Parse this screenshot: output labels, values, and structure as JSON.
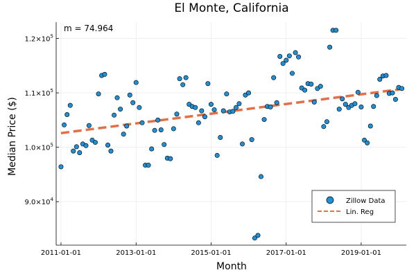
{
  "chart_data": {
    "type": "scatter",
    "title": "El Monte, California",
    "xlabel": "Month",
    "ylabel": "Median Price ($)",
    "annotation": "m = 74.964",
    "colors": {
      "points": "#1f8fd6",
      "line": "#e26f46"
    },
    "xlim": [
      "2010-11-15",
      "2020-03-15"
    ],
    "ylim": [
      82000,
      123000
    ],
    "grid": true,
    "legend_position": "bottom-right",
    "x_ticks": [
      {
        "date": "2011-01-01",
        "label": "2011-01-01"
      },
      {
        "date": "2013-01-01",
        "label": "2013-01-01"
      },
      {
        "date": "2015-01-01",
        "label": "2015-01-01"
      },
      {
        "date": "2017-01-01",
        "label": "2017-01-01"
      },
      {
        "date": "2019-01-01",
        "label": "2019-01-01"
      }
    ],
    "y_ticks": [
      {
        "value": 90000,
        "mantissa": "9.0×10",
        "exp": "4"
      },
      {
        "value": 100000,
        "mantissa": "1.0×10",
        "exp": "5"
      },
      {
        "value": 110000,
        "mantissa": "1.1×10",
        "exp": "5"
      },
      {
        "value": 120000,
        "mantissa": "1.2×10",
        "exp": "5"
      }
    ],
    "series": [
      {
        "name": "Zillow Data",
        "kind": "scatter",
        "points": [
          [
            "2011-01-01",
            96400
          ],
          [
            "2011-02-01",
            104100
          ],
          [
            "2011-03-01",
            106000
          ],
          [
            "2011-04-01",
            107700
          ],
          [
            "2011-05-01",
            99300
          ],
          [
            "2011-06-01",
            100100
          ],
          [
            "2011-07-01",
            99000
          ],
          [
            "2011-08-01",
            100600
          ],
          [
            "2011-09-01",
            100300
          ],
          [
            "2011-10-01",
            104000
          ],
          [
            "2011-11-01",
            101300
          ],
          [
            "2011-12-01",
            100900
          ],
          [
            "2012-01-01",
            109800
          ],
          [
            "2012-02-01",
            113200
          ],
          [
            "2012-03-01",
            113400
          ],
          [
            "2012-04-01",
            100400
          ],
          [
            "2012-05-01",
            99300
          ],
          [
            "2012-06-01",
            105900
          ],
          [
            "2012-07-01",
            109100
          ],
          [
            "2012-08-01",
            107000
          ],
          [
            "2012-09-01",
            102400
          ],
          [
            "2012-10-01",
            103900
          ],
          [
            "2012-11-01",
            109600
          ],
          [
            "2012-12-01",
            108200
          ],
          [
            "2013-01-01",
            111900
          ],
          [
            "2013-02-01",
            107300
          ],
          [
            "2013-03-01",
            104500
          ],
          [
            "2013-04-01",
            96700
          ],
          [
            "2013-05-01",
            96700
          ],
          [
            "2013-06-01",
            99700
          ],
          [
            "2013-07-01",
            103100
          ],
          [
            "2013-08-01",
            105000
          ],
          [
            "2013-09-01",
            103200
          ],
          [
            "2013-10-01",
            100500
          ],
          [
            "2013-11-01",
            98000
          ],
          [
            "2013-12-01",
            97900
          ],
          [
            "2014-01-01",
            103400
          ],
          [
            "2014-02-01",
            106100
          ],
          [
            "2014-03-01",
            112600
          ],
          [
            "2014-04-01",
            111500
          ],
          [
            "2014-05-01",
            112800
          ],
          [
            "2014-06-01",
            107900
          ],
          [
            "2014-07-01",
            107500
          ],
          [
            "2014-08-01",
            107300
          ],
          [
            "2014-09-01",
            104500
          ],
          [
            "2014-10-01",
            106700
          ],
          [
            "2014-11-01",
            105600
          ],
          [
            "2014-12-01",
            111700
          ],
          [
            "2015-01-01",
            107900
          ],
          [
            "2015-02-01",
            106900
          ],
          [
            "2015-03-01",
            98500
          ],
          [
            "2015-04-01",
            101800
          ],
          [
            "2015-05-01",
            106700
          ],
          [
            "2015-06-01",
            109800
          ],
          [
            "2015-07-01",
            106500
          ],
          [
            "2015-08-01",
            106600
          ],
          [
            "2015-09-01",
            107300
          ],
          [
            "2015-10-01",
            108000
          ],
          [
            "2015-11-01",
            100600
          ],
          [
            "2015-12-01",
            109600
          ],
          [
            "2016-01-01",
            110000
          ],
          [
            "2016-02-01",
            101400
          ],
          [
            "2016-03-01",
            83300
          ],
          [
            "2016-04-01",
            83800
          ],
          [
            "2016-05-01",
            94600
          ],
          [
            "2016-06-01",
            105100
          ],
          [
            "2016-07-01",
            107500
          ],
          [
            "2016-08-01",
            107400
          ],
          [
            "2016-09-01",
            112800
          ],
          [
            "2016-10-01",
            108200
          ],
          [
            "2016-11-01",
            116700
          ],
          [
            "2016-12-01",
            115400
          ],
          [
            "2017-01-01",
            116000
          ],
          [
            "2017-02-01",
            116800
          ],
          [
            "2017-03-01",
            113600
          ],
          [
            "2017-04-01",
            117400
          ],
          [
            "2017-05-01",
            116600
          ],
          [
            "2017-06-01",
            110900
          ],
          [
            "2017-07-01",
            110500
          ],
          [
            "2017-08-01",
            111700
          ],
          [
            "2017-09-01",
            111600
          ],
          [
            "2017-10-01",
            108300
          ],
          [
            "2017-11-01",
            110800
          ],
          [
            "2017-12-01",
            111200
          ],
          [
            "2018-01-01",
            103800
          ],
          [
            "2018-02-01",
            104700
          ],
          [
            "2018-03-01",
            118400
          ],
          [
            "2018-04-01",
            121500
          ],
          [
            "2018-05-01",
            121500
          ],
          [
            "2018-06-01",
            107000
          ],
          [
            "2018-07-01",
            108900
          ],
          [
            "2018-08-01",
            107900
          ],
          [
            "2018-09-01",
            107300
          ],
          [
            "2018-10-01",
            107700
          ],
          [
            "2018-11-01",
            108000
          ],
          [
            "2018-12-01",
            110100
          ],
          [
            "2019-01-01",
            107400
          ],
          [
            "2019-02-01",
            101300
          ],
          [
            "2019-03-01",
            100800
          ],
          [
            "2019-04-01",
            103900
          ],
          [
            "2019-05-01",
            107500
          ],
          [
            "2019-06-01",
            109500
          ],
          [
            "2019-07-01",
            112500
          ],
          [
            "2019-08-01",
            113100
          ],
          [
            "2019-09-01",
            113200
          ],
          [
            "2019-10-01",
            109900
          ],
          [
            "2019-11-01",
            110000
          ],
          [
            "2019-12-01",
            108800
          ],
          [
            "2020-01-01",
            111000
          ],
          [
            "2020-02-01",
            110800
          ]
        ]
      },
      {
        "name": "Lin. Reg",
        "kind": "line",
        "points": [
          [
            "2011-01-01",
            102600
          ],
          [
            "2020-02-01",
            110700
          ]
        ]
      }
    ]
  }
}
